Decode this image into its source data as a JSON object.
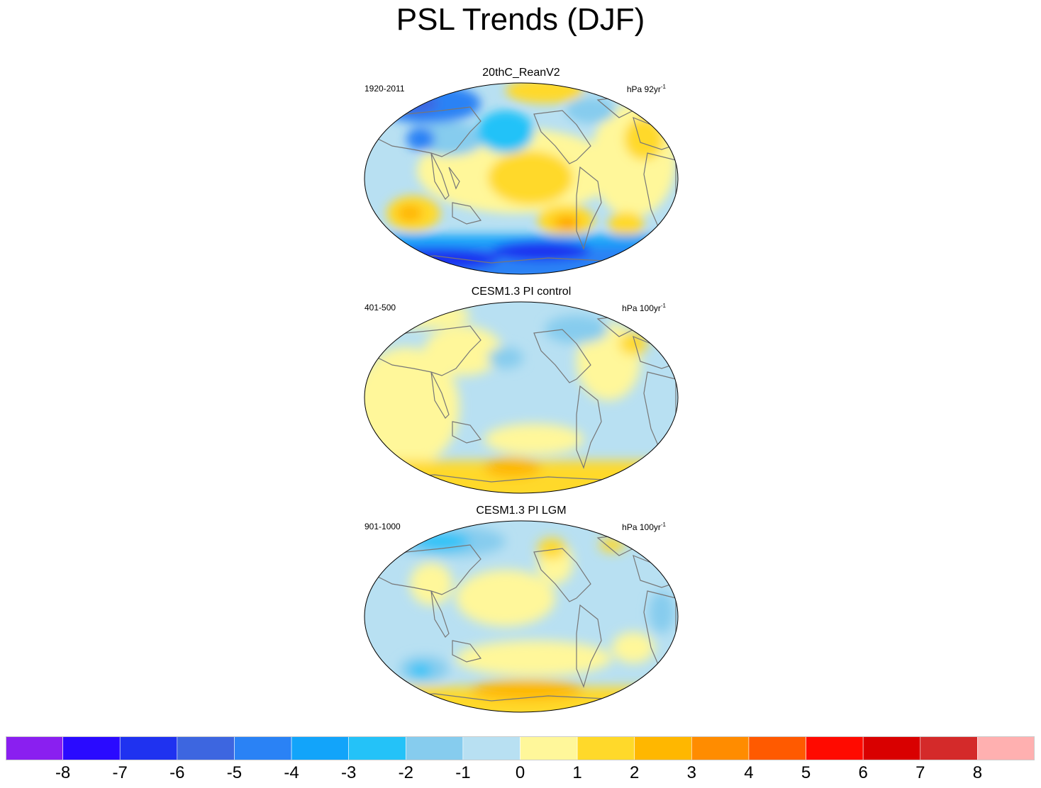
{
  "title": "PSL Trends (DJF)",
  "chart_data": [
    {
      "type": "heatmap",
      "title": "20thC_ReanV2",
      "period": "1920-2011",
      "units_base": "hPa 92yr",
      "units_exp": "-1"
    },
    {
      "type": "heatmap",
      "title": "CESM1.3 PI control",
      "period": "401-500",
      "units_base": "hPa 100yr",
      "units_exp": "-1"
    },
    {
      "type": "heatmap",
      "title": "CESM1.3 PI LGM",
      "period": "901-1000",
      "units_base": "hPa 100yr",
      "units_exp": "-1"
    }
  ],
  "colorbar": {
    "colors": [
      "#8a1ff0",
      "#2a0aff",
      "#1f32f0",
      "#3d66e0",
      "#2a82f5",
      "#12a4fa",
      "#24c2f8",
      "#86ccee",
      "#b8e0f2",
      "#fff79a",
      "#ffd92a",
      "#ffb700",
      "#ff8c00",
      "#ff5a00",
      "#ff0a00",
      "#d90000",
      "#d42a2a",
      "#ffb0b0"
    ],
    "labels": [
      "-8",
      "-7",
      "-6",
      "-5",
      "-4",
      "-3",
      "-2",
      "-1",
      "0",
      "1",
      "2",
      "3",
      "4",
      "5",
      "6",
      "7",
      "8"
    ]
  },
  "colors": {
    "coast": "#777777",
    "land_low": "#b8e0f2"
  }
}
